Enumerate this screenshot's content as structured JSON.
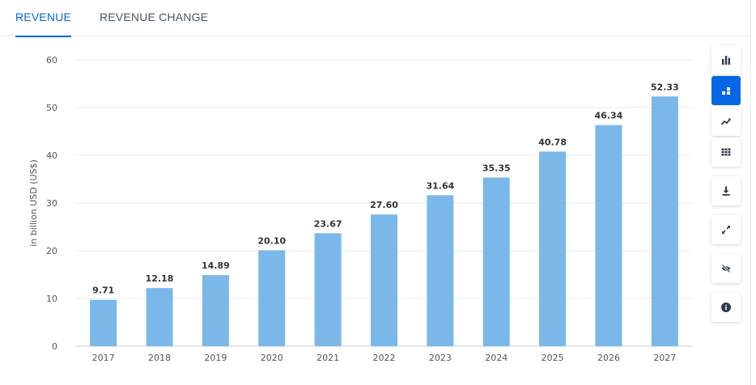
{
  "tabs": [
    {
      "label": "REVENUE",
      "active": true
    },
    {
      "label": "REVENUE CHANGE",
      "active": false
    }
  ],
  "toolbar": [
    {
      "icon": "bar-chart-icon",
      "active": false
    },
    {
      "icon": "stacked-bar-icon",
      "active": true
    },
    {
      "icon": "trend-line-icon",
      "active": false
    },
    {
      "icon": "table-grid-icon",
      "active": false
    },
    {
      "icon": "download-icon",
      "active": false
    },
    {
      "icon": "expand-icon",
      "active": false
    },
    {
      "icon": "hide-icon",
      "active": false
    },
    {
      "icon": "info-icon",
      "active": false
    }
  ],
  "colors": {
    "bar": "#7ab8e9",
    "accent": "#0666e5",
    "grid": "#e6e9ee",
    "text": "#333333",
    "axis_text": "#555555"
  },
  "chart_data": {
    "type": "bar",
    "categories": [
      "2017",
      "2018",
      "2019",
      "2020",
      "2021",
      "2022",
      "2023",
      "2024",
      "2025",
      "2026",
      "2027"
    ],
    "values": [
      9.71,
      12.18,
      14.89,
      20.1,
      23.67,
      27.6,
      31.64,
      35.35,
      40.78,
      46.34,
      52.33
    ],
    "data_labels": [
      "9.71",
      "12.18",
      "14.89",
      "20.10",
      "23.67",
      "27.60",
      "31.64",
      "35.35",
      "40.78",
      "46.34",
      "52.33"
    ],
    "ylabel": "in billion USD (US$)",
    "xlabel": "",
    "ylim": [
      0,
      60
    ],
    "yticks": [
      0,
      10,
      20,
      30,
      40,
      50,
      60
    ],
    "grid": true,
    "legend": "none"
  }
}
